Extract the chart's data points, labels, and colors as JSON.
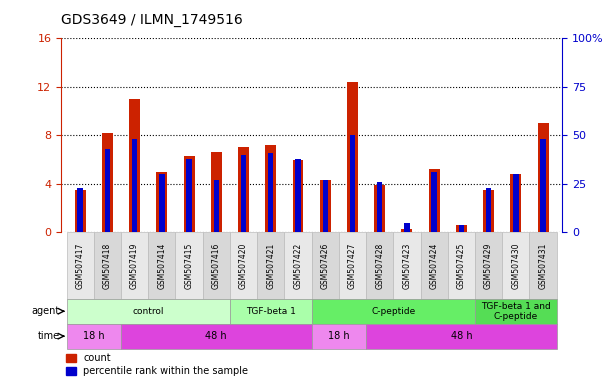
{
  "title": "GDS3649 / ILMN_1749516",
  "samples": [
    "GSM507417",
    "GSM507418",
    "GSM507419",
    "GSM507414",
    "GSM507415",
    "GSM507416",
    "GSM507420",
    "GSM507421",
    "GSM507422",
    "GSM507426",
    "GSM507427",
    "GSM507428",
    "GSM507423",
    "GSM507424",
    "GSM507425",
    "GSM507429",
    "GSM507430",
    "GSM507431"
  ],
  "counts": [
    3.5,
    8.2,
    11.0,
    5.0,
    6.3,
    6.6,
    7.0,
    7.2,
    6.0,
    4.3,
    12.4,
    3.9,
    0.3,
    5.2,
    0.6,
    3.5,
    4.8,
    9.0
  ],
  "percentiles": [
    23,
    43,
    48,
    30,
    38,
    27,
    40,
    41,
    38,
    27,
    50,
    26,
    5,
    31,
    4,
    23,
    30,
    48
  ],
  "bar_color_red": "#CC2200",
  "bar_color_blue": "#0000CC",
  "ylim_left": [
    0,
    16
  ],
  "ylim_right": [
    0,
    100
  ],
  "yticks_left": [
    0,
    4,
    8,
    12,
    16
  ],
  "yticks_right": [
    0,
    25,
    50,
    75,
    100
  ],
  "agent_groups": [
    {
      "label": "control",
      "start": 0,
      "end": 5,
      "color": "#ccffcc"
    },
    {
      "label": "TGF-beta 1",
      "start": 6,
      "end": 8,
      "color": "#aaffaa"
    },
    {
      "label": "C-peptide",
      "start": 9,
      "end": 14,
      "color": "#66ee66"
    },
    {
      "label": "TGF-beta 1 and\nC-peptide",
      "start": 15,
      "end": 17,
      "color": "#55dd55"
    }
  ],
  "time_groups": [
    {
      "label": "18 h",
      "start": 0,
      "end": 1,
      "color": "#ee88ee"
    },
    {
      "label": "48 h",
      "start": 2,
      "end": 8,
      "color": "#dd44dd"
    },
    {
      "label": "18 h",
      "start": 9,
      "end": 10,
      "color": "#ee88ee"
    },
    {
      "label": "48 h",
      "start": 11,
      "end": 17,
      "color": "#dd44dd"
    }
  ],
  "bg_color": "#ffffff",
  "grid_color": "#000000",
  "tick_color_left": "#CC2200",
  "tick_color_right": "#0000CC",
  "bar_width": 0.4
}
